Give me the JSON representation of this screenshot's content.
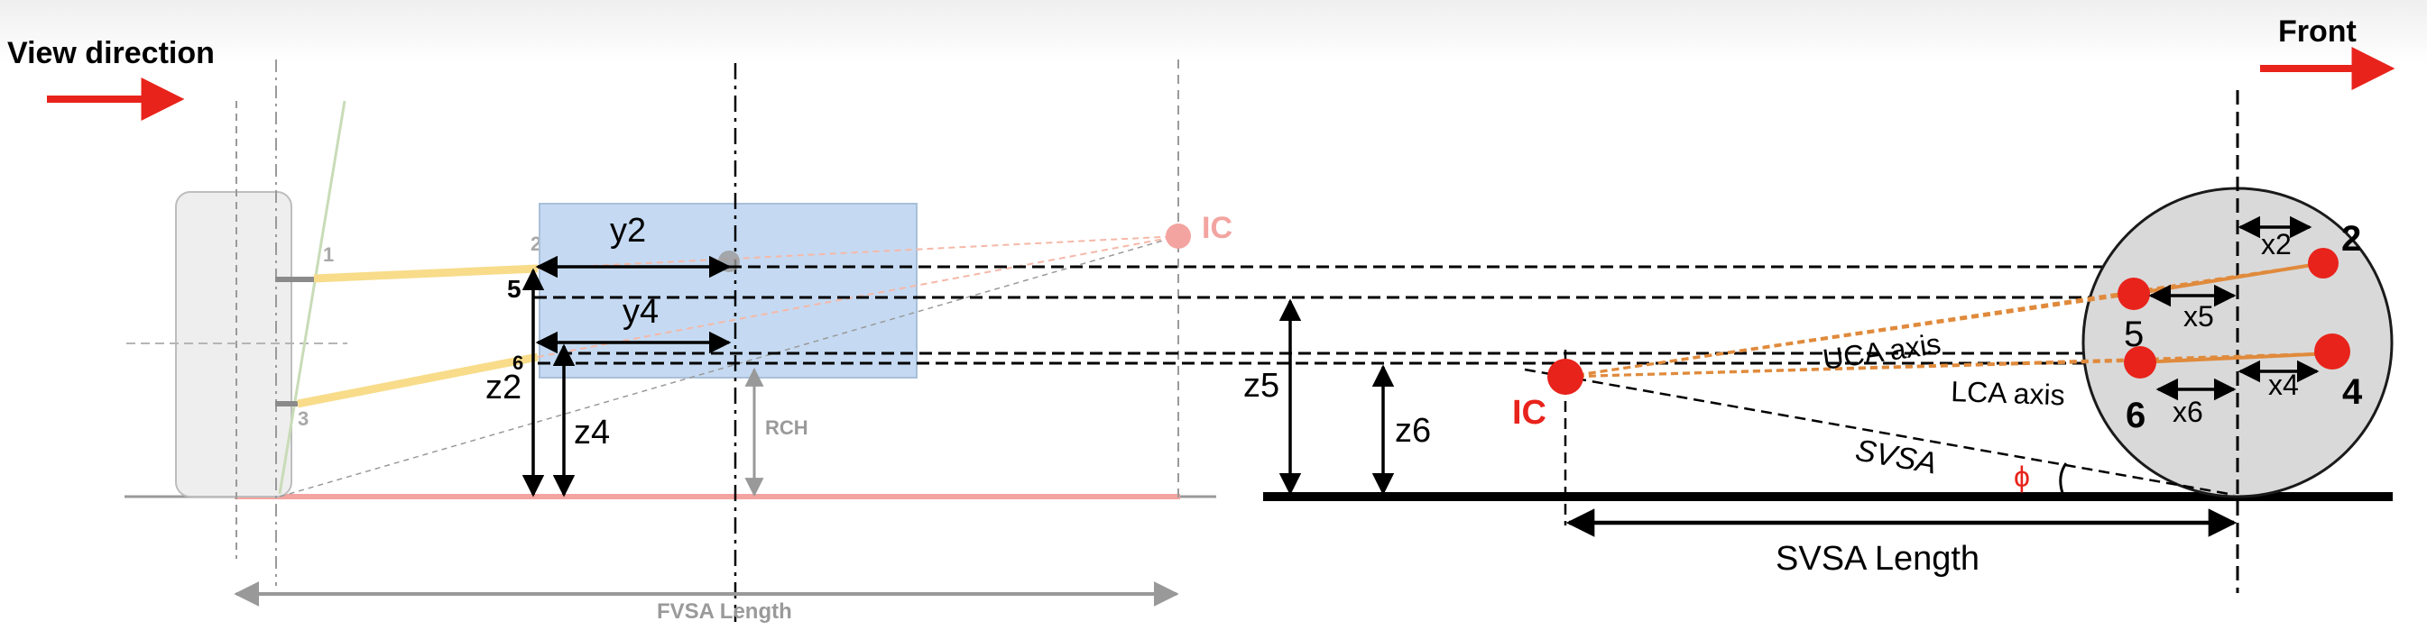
{
  "header": {
    "view_direction": "View direction",
    "front": "Front"
  },
  "front_view": {
    "point_labels": [
      "1",
      "2",
      "3",
      "5",
      "6"
    ],
    "ic_label": "IC",
    "dims": {
      "y2": "y2",
      "y4": "y4",
      "z2": "z2",
      "z4": "z4"
    },
    "rch_label": "RCH",
    "fvsa_label": "FVSA Length"
  },
  "side_view": {
    "ic_label": "IC",
    "dims": {
      "z5": "z5",
      "z6": "z6",
      "x2": "x2",
      "x5": "x5",
      "x4": "x4",
      "x6": "x6"
    },
    "point_labels": {
      "p2": "2",
      "p5": "5",
      "p4": "4",
      "p6": "6"
    },
    "uca_axis": "UCA axis",
    "lca_axis": "LCA axis",
    "svsa": "SVSA",
    "phi": "ϕ",
    "svsa_length": "SVSA Length"
  },
  "colors": {
    "accent_red": "#e8231b",
    "faded_red": "#f3a4a0",
    "orange": "#e08a3c",
    "box_blue": "#c5daf2",
    "wheel_grey": "#d9d9d9",
    "arm_yellow": "#f8dc8a"
  }
}
